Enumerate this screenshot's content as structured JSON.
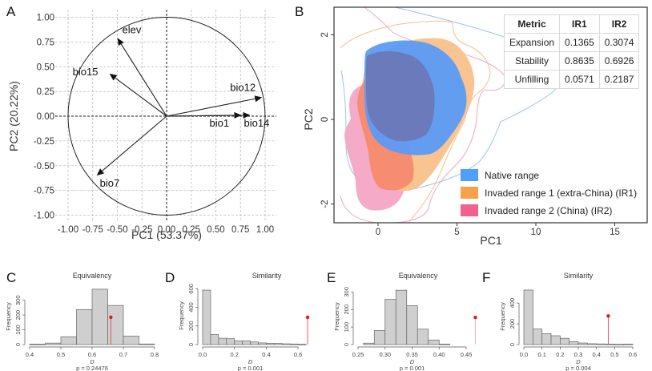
{
  "panels": {
    "A": "A",
    "B": "B",
    "C": "C",
    "D": "D",
    "E": "E",
    "F": "F"
  },
  "chart_data": [
    {
      "id": "A",
      "type": "scatter",
      "subtype": "pca-correlation-circle",
      "title": "",
      "xlabel": "PC1 (53.37%)",
      "ylabel": "PC2 (20.22%)",
      "xlim": [
        -1.0,
        1.0
      ],
      "ylim": [
        -1.0,
        1.0
      ],
      "xticks": [
        "-1.00",
        "-0.75",
        "-0.50",
        "-0.25",
        "0.00",
        "0.25",
        "0.50",
        "0.75",
        "1.00"
      ],
      "yticks": [
        "1.00",
        "0.75",
        "0.50",
        "0.25",
        "0.00",
        "-0.25",
        "-0.50",
        "-0.75",
        "-1.00"
      ],
      "xtick_values": [
        -1.0,
        -0.75,
        -0.5,
        -0.25,
        0.0,
        0.25,
        0.5,
        0.75,
        1.0
      ],
      "ytick_values": [
        1.0,
        0.75,
        0.5,
        0.25,
        0.0,
        -0.25,
        -0.5,
        -0.75,
        -1.0
      ],
      "grid": true,
      "vectors": [
        {
          "name": "elev",
          "x": -0.5,
          "y": 0.79
        },
        {
          "name": "bio15",
          "x": -0.58,
          "y": 0.43
        },
        {
          "name": "bio12",
          "x": 0.97,
          "y": 0.19
        },
        {
          "name": "bio1",
          "x": 0.76,
          "y": 0.01
        },
        {
          "name": "bio14",
          "x": 0.85,
          "y": 0.01
        },
        {
          "name": "bio7",
          "x": -0.71,
          "y": -0.6
        }
      ]
    },
    {
      "id": "B",
      "type": "area",
      "subtype": "niche-density-kernel",
      "xlabel": "PC1",
      "ylabel": "PC2",
      "xlim": [
        -2.8,
        17.0
      ],
      "ylim": [
        -2.5,
        2.5
      ],
      "xticks": [
        "0",
        "5",
        "10",
        "15"
      ],
      "xtick_values": [
        0,
        5,
        10,
        15
      ],
      "yticks": [
        "2",
        "0",
        "-2"
      ],
      "ytick_values": [
        2,
        0,
        -2
      ],
      "legend_position": "bottom-right",
      "legend": [
        {
          "label": "Native range",
          "color": "#4f9ef8"
        },
        {
          "label": "Invaded range 1 (extra-China) (IR1)",
          "color": "#f9a04a"
        },
        {
          "label": "Invaded range 2 (China) (IR2)",
          "color": "#f2608f"
        }
      ],
      "table": {
        "headers": [
          "Metric",
          "IR1",
          "IR2"
        ],
        "rows": [
          [
            "Expansion",
            "0.1365",
            "0.3074"
          ],
          [
            "Stability",
            "0.8635",
            "0.6926"
          ],
          [
            "Unfilling",
            "0.0571",
            "0.2187"
          ]
        ]
      }
    },
    {
      "id": "C",
      "type": "bar",
      "subtype": "histogram",
      "title": "Equivalency",
      "xlabel": "D",
      "ylabel": "Frequency",
      "caption": "p = 0.24476",
      "xlim": [
        0.4,
        0.8
      ],
      "ylim": [
        0,
        380
      ],
      "xticks": [
        "0.4",
        "0.5",
        "0.6",
        "0.7",
        "0.8"
      ],
      "xtick_values": [
        0.4,
        0.5,
        0.6,
        0.7,
        0.8
      ],
      "yticks": [
        "0",
        "100",
        "200",
        "300"
      ],
      "ytick_values": [
        0,
        100,
        200,
        300
      ],
      "bin_edges": [
        0.4,
        0.45,
        0.5,
        0.55,
        0.6,
        0.65,
        0.7,
        0.75,
        0.8
      ],
      "values": [
        3,
        10,
        53,
        237,
        375,
        265,
        58,
        4
      ],
      "observed": {
        "x": 0.66,
        "y": 185
      }
    },
    {
      "id": "D",
      "type": "bar",
      "subtype": "histogram",
      "title": "Similarity",
      "xlabel": "D",
      "ylabel": "Frequency",
      "caption": "p = 0.001",
      "xlim": [
        0.0,
        0.68
      ],
      "ylim": [
        0,
        620
      ],
      "xticks": [
        "0.0",
        "0.2",
        "0.4",
        "0.6"
      ],
      "xtick_values": [
        0.0,
        0.2,
        0.4,
        0.6
      ],
      "yticks": [
        "0",
        "200",
        "400",
        "600"
      ],
      "ytick_values": [
        0,
        200,
        400,
        600
      ],
      "bin_edges": [
        0.0,
        0.05,
        0.1,
        0.15,
        0.2,
        0.25,
        0.3,
        0.35,
        0.4,
        0.45,
        0.5,
        0.55,
        0.6,
        0.65
      ],
      "values": [
        585,
        108,
        68,
        63,
        40,
        40,
        28,
        18,
        14,
        12,
        8,
        6,
        4
      ],
      "observed": {
        "x": 0.66,
        "y": 293
      }
    },
    {
      "id": "E",
      "type": "bar",
      "subtype": "histogram",
      "title": "Equivalency",
      "xlabel": "D",
      "ylabel": "Frequency",
      "caption": "p = 0.001",
      "xlim": [
        0.25,
        0.45
      ],
      "ylim": [
        0,
        320
      ],
      "xticks": [
        "0.25",
        "0.30",
        "0.35",
        "0.40",
        "0.45"
      ],
      "xtick_values": [
        0.25,
        0.3,
        0.35,
        0.4,
        0.45
      ],
      "yticks": [
        "0",
        "100",
        "200",
        "300"
      ],
      "ytick_values": [
        0,
        100,
        200,
        300
      ],
      "bin_edges": [
        0.26,
        0.28,
        0.3,
        0.32,
        0.34,
        0.36,
        0.38,
        0.4,
        0.42
      ],
      "values": [
        8,
        80,
        258,
        310,
        222,
        88,
        26,
        3
      ],
      "observed": {
        "x": 0.467,
        "y": 155
      }
    },
    {
      "id": "F",
      "type": "bar",
      "subtype": "histogram",
      "title": "Similarity",
      "xlabel": "D",
      "ylabel": "Frequency",
      "caption": "p = 0.004",
      "xlim": [
        0.0,
        0.6
      ],
      "ylim": [
        0,
        540
      ],
      "xticks": [
        "0.0",
        "0.1",
        "0.2",
        "0.3",
        "0.4",
        "0.5",
        "0.6"
      ],
      "xtick_values": [
        0.0,
        0.1,
        0.2,
        0.3,
        0.4,
        0.5,
        0.6
      ],
      "yticks": [
        "0",
        "200",
        "400"
      ],
      "ytick_values": [
        0,
        200,
        400
      ],
      "bin_edges": [
        0.0,
        0.05,
        0.1,
        0.15,
        0.2,
        0.25,
        0.3,
        0.35,
        0.4,
        0.45,
        0.5,
        0.55,
        0.6
      ],
      "values": [
        525,
        150,
        105,
        85,
        60,
        28,
        15,
        8,
        6,
        5,
        3,
        5
      ],
      "observed": {
        "x": 0.465,
        "y": 275
      }
    }
  ]
}
